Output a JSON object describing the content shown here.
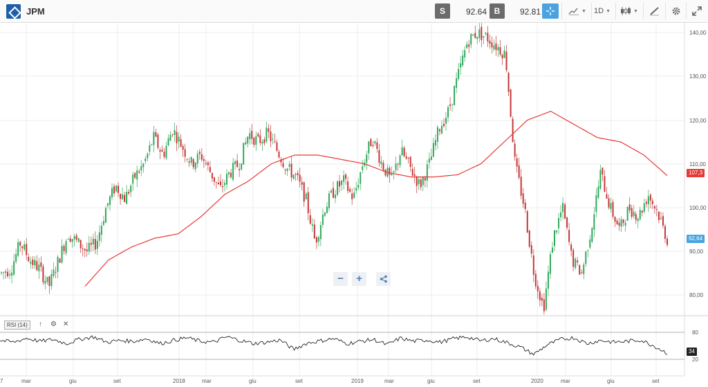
{
  "toolbar": {
    "symbol": "JPM",
    "sell_label": "S",
    "sell_price": "92.64",
    "buy_label": "B",
    "buy_price": "92.81",
    "timeframe": "1D"
  },
  "icons": [
    "jpm-logo-icon",
    "crosshair-icon",
    "chart-type-icon",
    "candlestick-icon",
    "draw-tool-icon",
    "gear-icon",
    "fullscreen-icon",
    "zoom-out-icon",
    "zoom-in-icon",
    "share-icon",
    "arrow-up-icon",
    "close-icon"
  ],
  "colors": {
    "up": "#2fa85a",
    "down": "#c43535",
    "ma": "#e53935",
    "rsi": "#222222",
    "current_price_tag": "#4aa3df",
    "ma_tag": "#e53935"
  },
  "price_axis": {
    "ticks": [
      "140,00",
      "130,00",
      "120,00",
      "110,00",
      "100,00",
      "90,00",
      "80,00"
    ],
    "current_price_tag": "92,64",
    "ma_tag": "107,3"
  },
  "time_axis": {
    "labels": [
      "7",
      "mar",
      "giu",
      "set",
      "2018",
      "mar",
      "giu",
      "set",
      "2019",
      "mar",
      "giu",
      "set",
      "2020",
      "mar",
      "giu",
      "set"
    ]
  },
  "zoom": {
    "minus": "−",
    "plus": "+"
  },
  "rsi_panel": {
    "label": "RSI (14)",
    "ticks": [
      "80",
      "20"
    ],
    "current_value": "34"
  },
  "chart_data": {
    "type": "line",
    "series": [
      {
        "values": [
          85,
          86,
          92,
          88,
          86,
          82,
          88,
          94,
          92,
          90,
          92,
          100,
          105,
          102,
          107,
          110,
          116,
          112,
          118,
          114,
          110,
          112,
          108,
          104,
          108,
          110,
          117,
          115,
          117,
          113,
          109,
          107,
          102,
          92,
          100,
          104,
          106,
          102,
          110,
          116,
          110,
          106,
          113,
          109,
          105,
          110,
          118,
          122,
          130,
          138,
          140,
          139,
          137,
          135,
          110,
          100,
          85,
          77,
          93,
          100,
          88,
          85,
          95,
          108,
          100,
          95,
          100,
          98,
          103,
          99,
          92.64
        ]
      },
      {
        "values": [
          82,
          88,
          91,
          93,
          94,
          98,
          103,
          106,
          110,
          112,
          112,
          111,
          110,
          108,
          107,
          107,
          107.5,
          110,
          115,
          120,
          122,
          119,
          116,
          115,
          112,
          107.3
        ]
      },
      {
        "values": [
          62,
          58,
          67,
          60,
          64,
          55,
          65,
          70,
          58,
          62,
          60,
          66,
          55,
          62,
          68,
          60,
          58,
          70,
          62,
          55,
          58,
          63,
          42,
          56,
          61,
          66,
          55,
          60,
          64,
          52,
          67,
          60,
          63,
          58,
          66,
          70,
          61,
          66,
          57,
          47,
          31,
          52,
          64,
          68,
          55,
          62,
          58,
          60,
          63,
          50,
          34
        ]
      }
    ],
    "ylim": [
      75,
      142
    ],
    "grid": true
  }
}
